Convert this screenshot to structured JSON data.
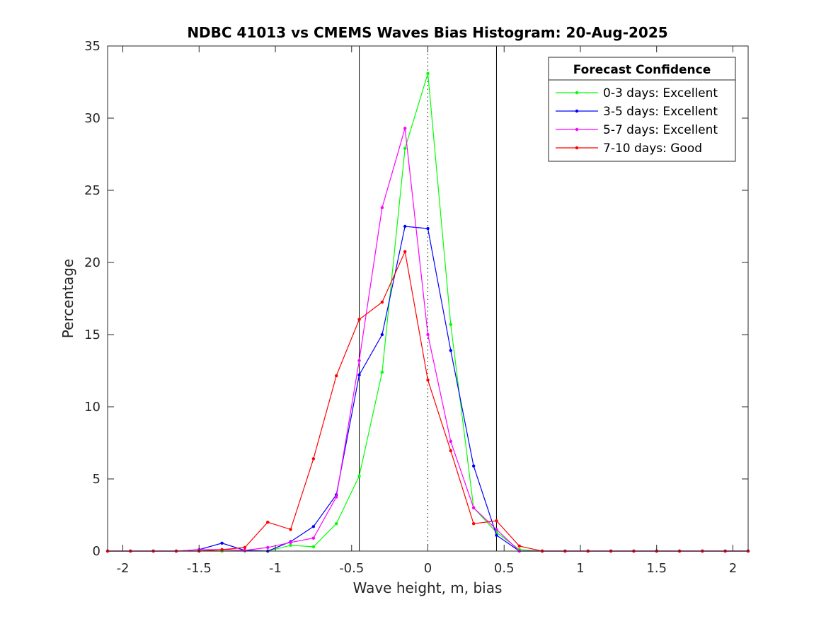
{
  "chart_data": {
    "type": "line",
    "title": "NDBC 41013 vs CMEMS Waves Bias Histogram: 20-Aug-2025",
    "xlabel": "Wave height, m, bias",
    "ylabel": "Percentage",
    "xlim": [
      -2.1,
      2.1
    ],
    "ylim": [
      0,
      35
    ],
    "xticks": [
      -2,
      -1.5,
      -1,
      -0.5,
      0,
      0.5,
      1,
      1.5,
      2
    ],
    "xtick_labels": [
      "-2",
      "-1.5",
      "-1",
      "-0.5",
      "0",
      "0.5",
      "1",
      "1.5",
      "2"
    ],
    "yticks": [
      0,
      5,
      10,
      15,
      20,
      25,
      30,
      35
    ],
    "ytick_labels": [
      "0",
      "5",
      "10",
      "15",
      "20",
      "25",
      "30",
      "35"
    ],
    "reference_lines": [
      {
        "x": -0.45,
        "style": "solid"
      },
      {
        "x": 0,
        "style": "dotted"
      },
      {
        "x": 0.45,
        "style": "solid"
      }
    ],
    "x": [
      -2.1,
      -1.95,
      -1.8,
      -1.65,
      -1.5,
      -1.35,
      -1.2,
      -1.05,
      -0.9,
      -0.75,
      -0.6,
      -0.45,
      -0.3,
      -0.15,
      0,
      0.15,
      0.3,
      0.45,
      0.6,
      0.75,
      0.9,
      1.05,
      1.2,
      1.35,
      1.5,
      1.65,
      1.8,
      1.95,
      2.1
    ],
    "series": [
      {
        "name": "0-3 days: Excellent",
        "color": "#00ff00",
        "values": [
          0,
          0,
          0,
          0,
          0,
          0,
          0,
          0,
          0.4,
          0.3,
          1.9,
          5.2,
          12.4,
          27.9,
          33.1,
          15.7,
          3.0,
          1.3,
          0.1,
          0,
          0,
          0,
          0,
          0,
          0,
          0,
          0,
          0,
          0
        ]
      },
      {
        "name": "3-5 days: Excellent",
        "color": "#0000ff",
        "values": [
          0,
          0,
          0,
          0,
          0.1,
          0.55,
          0.05,
          0,
          0.65,
          1.7,
          3.9,
          12.2,
          15.0,
          22.5,
          22.35,
          13.9,
          5.9,
          1.1,
          0,
          0,
          0,
          0,
          0,
          0,
          0,
          0,
          0,
          0,
          0
        ]
      },
      {
        "name": "5-7 days: Excellent",
        "color": "#ff00ff",
        "values": [
          0,
          0,
          0,
          0,
          0.1,
          0.1,
          0.05,
          0.25,
          0.6,
          0.9,
          3.75,
          13.2,
          23.8,
          29.3,
          15.0,
          7.6,
          3.0,
          1.5,
          0,
          0,
          0,
          0,
          0,
          0,
          0,
          0,
          0,
          0,
          0
        ]
      },
      {
        "name": "7-10 days: Good",
        "color": "#ff0000",
        "values": [
          0,
          0,
          0,
          0,
          0,
          0.1,
          0.25,
          2.0,
          1.5,
          6.4,
          12.15,
          16.05,
          17.25,
          20.75,
          11.85,
          6.95,
          1.9,
          2.1,
          0.35,
          0,
          0,
          0,
          0,
          0,
          0,
          0,
          0,
          0,
          0
        ]
      }
    ],
    "legend": {
      "title": "Forecast Confidence",
      "location": "top-right"
    }
  }
}
